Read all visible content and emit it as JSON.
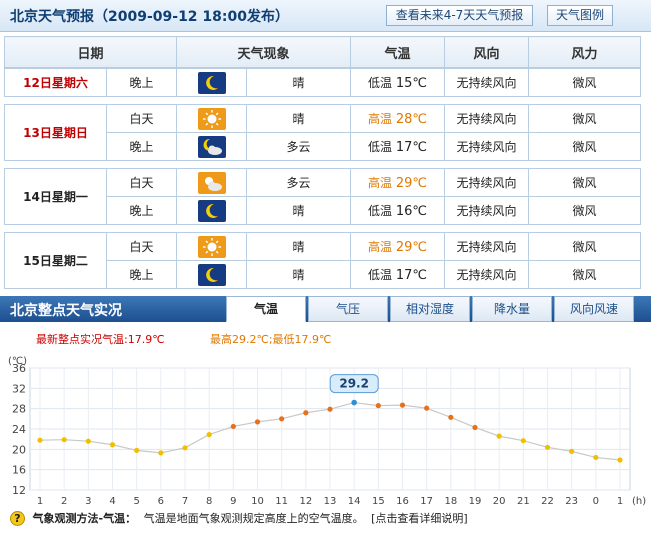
{
  "forecast": {
    "title": "北京天气预报（2009-09-12 18:00发布）",
    "btn_more": "查看未来4-7天天气预报",
    "btn_legend": "天气图例",
    "headers": [
      "日期",
      "天气现象",
      "气温",
      "风向",
      "风力"
    ],
    "days": [
      {
        "date": "12日星期六",
        "highlight": true,
        "rows": [
          {
            "period": "晚上",
            "icon": "moon-icon",
            "weather": "晴",
            "temp_label": "低温",
            "temp": "15℃",
            "wind_dir": "无持续风向",
            "wind_force": "微风"
          }
        ]
      },
      {
        "date": "13日星期日",
        "highlight": true,
        "rows": [
          {
            "period": "白天",
            "icon": "sun-icon",
            "weather": "晴",
            "temp_label": "高温",
            "temp": "28℃",
            "wind_dir": "无持续风向",
            "wind_force": "微风"
          },
          {
            "period": "晚上",
            "icon": "cloudy-night-icon",
            "weather": "多云",
            "temp_label": "低温",
            "temp": "17℃",
            "wind_dir": "无持续风向",
            "wind_force": "微风"
          }
        ]
      },
      {
        "date": "14日星期一",
        "highlight": false,
        "rows": [
          {
            "period": "白天",
            "icon": "cloudy-day-icon",
            "weather": "多云",
            "temp_label": "高温",
            "temp": "29℃",
            "wind_dir": "无持续风向",
            "wind_force": "微风"
          },
          {
            "period": "晚上",
            "icon": "moon-icon",
            "weather": "晴",
            "temp_label": "低温",
            "temp": "16℃",
            "wind_dir": "无持续风向",
            "wind_force": "微风"
          }
        ]
      },
      {
        "date": "15日星期二",
        "highlight": false,
        "rows": [
          {
            "period": "白天",
            "icon": "sun-icon",
            "weather": "晴",
            "temp_label": "高温",
            "temp": "29℃",
            "wind_dir": "无持续风向",
            "wind_force": "微风"
          },
          {
            "period": "晚上",
            "icon": "moon-icon",
            "weather": "晴",
            "temp_label": "低温",
            "temp": "17℃",
            "wind_dir": "无持续风向",
            "wind_force": "微风"
          }
        ]
      }
    ]
  },
  "observation": {
    "title": "北京整点天气实况",
    "tabs": [
      "气温",
      "气压",
      "相对湿度",
      "降水量",
      "风向风速"
    ],
    "active_tab": 0,
    "latest_label": "最新整点实况气温:17.9℃",
    "range_label": "最高29.2℃;最低17.9℃"
  },
  "chart_data": {
    "type": "line",
    "unit_label": "(℃)",
    "x_unit_label": "(h)",
    "x": [
      "1",
      "2",
      "3",
      "4",
      "5",
      "6",
      "7",
      "8",
      "9",
      "10",
      "11",
      "12",
      "13",
      "14",
      "15",
      "16",
      "17",
      "18",
      "19",
      "20",
      "21",
      "22",
      "23",
      "0",
      "1"
    ],
    "values": [
      21.8,
      21.9,
      21.6,
      20.9,
      19.8,
      19.3,
      20.3,
      22.9,
      24.5,
      25.4,
      26.0,
      27.2,
      27.9,
      29.2,
      28.6,
      28.7,
      28.1,
      26.3,
      24.3,
      22.6,
      21.7,
      20.4,
      19.6,
      18.4,
      17.9
    ],
    "ylim": [
      12,
      36
    ],
    "yticks": [
      12,
      16,
      20,
      24,
      28,
      32,
      36
    ],
    "max_callout": "29.2",
    "grid": true,
    "colors": {
      "warm": "#e8701c",
      "cool": "#f0c000",
      "line": "#c8c8c8",
      "callout_border": "#5a9bd5",
      "callout_bg": "#d8ecfb"
    }
  },
  "footer": {
    "help_icon": "question-icon",
    "label": "气象观测方法-气温：",
    "text": "气温是地面气象观测规定高度上的空气温度。",
    "link": "[点击查看详细说明]"
  }
}
